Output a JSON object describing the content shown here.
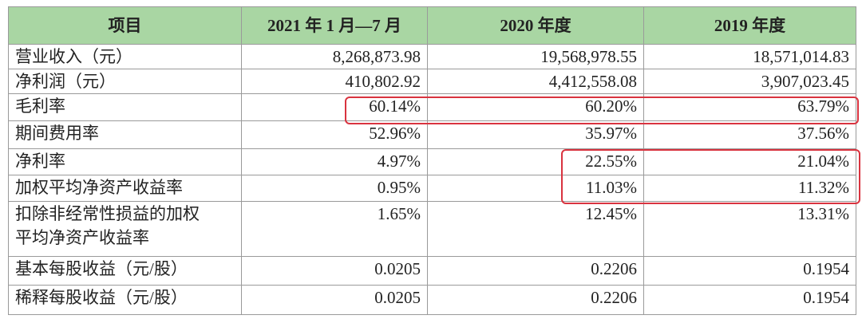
{
  "table": {
    "header": [
      "项目",
      "2021 年 1 月—7 月",
      "2020 年度",
      "2019 年度"
    ],
    "rows": [
      [
        "营业收入（元）",
        "8,268,873.98",
        "19,568,978.55",
        "18,571,014.83"
      ],
      [
        "净利润（元）",
        "410,802.92",
        "4,412,558.08",
        "3,907,023.45"
      ],
      [
        "毛利率",
        "60.14%",
        "60.20%",
        "63.79%"
      ],
      [
        "期间费用率",
        "52.96%",
        "35.97%",
        "37.56%"
      ],
      [
        "净利率",
        "4.97%",
        "22.55%",
        "21.04%"
      ],
      [
        "加权平均净资产收益率",
        "0.95%",
        "11.03%",
        "11.32%"
      ],
      [
        "扣除非经常性损益的加权平均净资产收益率",
        "1.65%",
        "12.45%",
        "13.31%"
      ],
      [
        "基本每股收益（元/股）",
        "0.0205",
        "0.2206",
        "0.1954"
      ],
      [
        "稀释每股收益（元/股）",
        "0.0205",
        "0.2206",
        "0.1954"
      ]
    ]
  }
}
